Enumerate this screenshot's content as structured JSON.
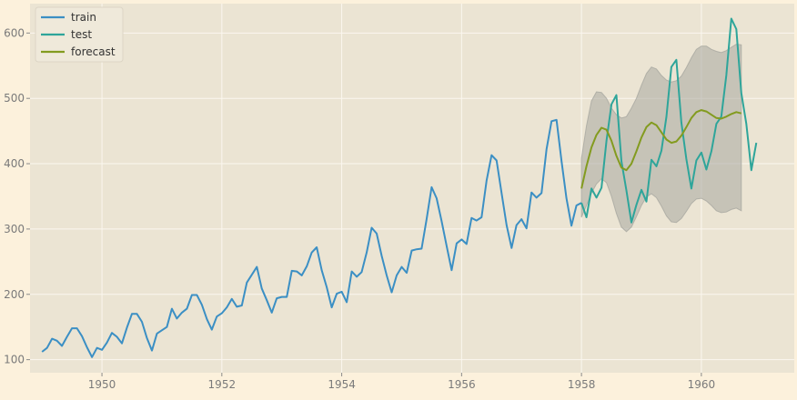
{
  "colors": {
    "figure_bg": "#fcf1dc",
    "axes_bg": "#ebe4d3",
    "grid": "#fbf7ef",
    "train": "#3b8fc4",
    "test": "#2ea59a",
    "forecast": "#839b1f",
    "band": "#a8a8a0",
    "tick_text": "#7a7a7a",
    "legend_bg": "#efe9da"
  },
  "chart_data": {
    "type": "line",
    "title": "",
    "xlabel": "",
    "ylabel": "",
    "xlim": [
      1948.8,
      1961.55
    ],
    "ylim": [
      80,
      645
    ],
    "x_ticks": [
      1950,
      1952,
      1954,
      1956,
      1958,
      1960
    ],
    "y_ticks": [
      100,
      200,
      300,
      400,
      500,
      600
    ],
    "grid": true,
    "legend": {
      "placement": "top-left",
      "entries": [
        "train",
        "test",
        "forecast"
      ]
    },
    "series": [
      {
        "name": "train",
        "x_start": 1949.0,
        "x_step": 0.0833333,
        "values": [
          112,
          118,
          132,
          129,
          121,
          135,
          148,
          148,
          136,
          119,
          104,
          118,
          115,
          126,
          141,
          135,
          125,
          149,
          170,
          170,
          158,
          133,
          114,
          140,
          145,
          150,
          178,
          163,
          172,
          178,
          199,
          199,
          184,
          162,
          146,
          166,
          171,
          180,
          193,
          181,
          183,
          218,
          230,
          242,
          209,
          191,
          172,
          194,
          196,
          196,
          236,
          235,
          229,
          243,
          264,
          272,
          237,
          211,
          180,
          201,
          204,
          188,
          235,
          227,
          234,
          264,
          302,
          293,
          259,
          229,
          203,
          229,
          242,
          233,
          267,
          269,
          270,
          315,
          364,
          347,
          312,
          274,
          237,
          278,
          284,
          277,
          317,
          313,
          318,
          374,
          413,
          405,
          355,
          306,
          271,
          306,
          315,
          301,
          356,
          348,
          355,
          422,
          465,
          467,
          404,
          347,
          305,
          336,
          340
        ]
      },
      {
        "name": "test",
        "x_start": 1958.0,
        "x_step": 0.0833333,
        "values": [
          340,
          318,
          362,
          348,
          363,
          435,
          491,
          505,
          404,
          359,
          310,
          337,
          360,
          342,
          406,
          396,
          420,
          472,
          548,
          559,
          463,
          407,
          362,
          405,
          417,
          391,
          419,
          461,
          472,
          535,
          622,
          606,
          508,
          461,
          390,
          432
        ]
      },
      {
        "name": "forecast",
        "x_start": 1958.0,
        "x_step": 0.0833333,
        "values": [
          362,
          396,
          425,
          444,
          455,
          452,
          435,
          412,
          394,
          390,
          400,
          419,
          440,
          456,
          463,
          459,
          448,
          437,
          432,
          434,
          443,
          456,
          470,
          479,
          482,
          480,
          475,
          470,
          469,
          472,
          476,
          479,
          477
        ],
        "lower": [
          318,
          336,
          355,
          369,
          377,
          371,
          350,
          324,
          303,
          296,
          303,
          319,
          336,
          349,
          354,
          348,
          335,
          320,
          311,
          310,
          316,
          327,
          339,
          346,
          347,
          343,
          336,
          328,
          325,
          326,
          330,
          332,
          328
        ],
        "upper": [
          408,
          458,
          496,
          510,
          509,
          500,
          485,
          475,
          470,
          472,
          485,
          500,
          520,
          538,
          548,
          545,
          535,
          528,
          525,
          527,
          534,
          547,
          562,
          575,
          580,
          580,
          575,
          572,
          570,
          573,
          578,
          583,
          582
        ]
      }
    ]
  }
}
